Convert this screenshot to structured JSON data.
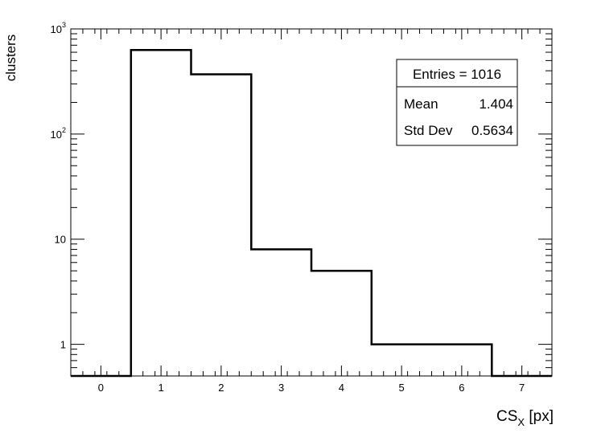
{
  "chart_data": {
    "type": "bar",
    "style": "step-histogram",
    "xlabel": {
      "main": "CS",
      "sub": "X",
      "unit": " [px]"
    },
    "ylabel": "clusters",
    "xlim": [
      -0.5,
      7.5
    ],
    "ylim": [
      0.5,
      1000
    ],
    "yscale": "log",
    "grid": false,
    "x_ticks": [
      "0",
      "1",
      "2",
      "3",
      "4",
      "5",
      "6",
      "7"
    ],
    "y_ticks": [
      {
        "value": 1,
        "base": "1",
        "exp": ""
      },
      {
        "value": 10,
        "base": "10",
        "exp": ""
      },
      {
        "value": 100,
        "base": "10",
        "exp": "2"
      },
      {
        "value": 1000,
        "base": "10",
        "exp": "3"
      }
    ],
    "bins": [
      {
        "low": -0.5,
        "high": 0.5,
        "value": 0
      },
      {
        "low": 0.5,
        "high": 1.5,
        "value": 630
      },
      {
        "low": 1.5,
        "high": 2.5,
        "value": 370
      },
      {
        "low": 2.5,
        "high": 3.5,
        "value": 8
      },
      {
        "low": 3.5,
        "high": 4.5,
        "value": 5
      },
      {
        "low": 4.5,
        "high": 5.5,
        "value": 1
      },
      {
        "low": 5.5,
        "high": 6.5,
        "value": 1
      },
      {
        "low": 6.5,
        "high": 7.5,
        "value": 0
      }
    ],
    "stats": {
      "entries": "Entries = 1016",
      "mean_label": "Mean",
      "mean_value": "1.404",
      "std_label": "Std Dev",
      "std_value": "0.5634"
    },
    "stats_placement": "top-right"
  }
}
